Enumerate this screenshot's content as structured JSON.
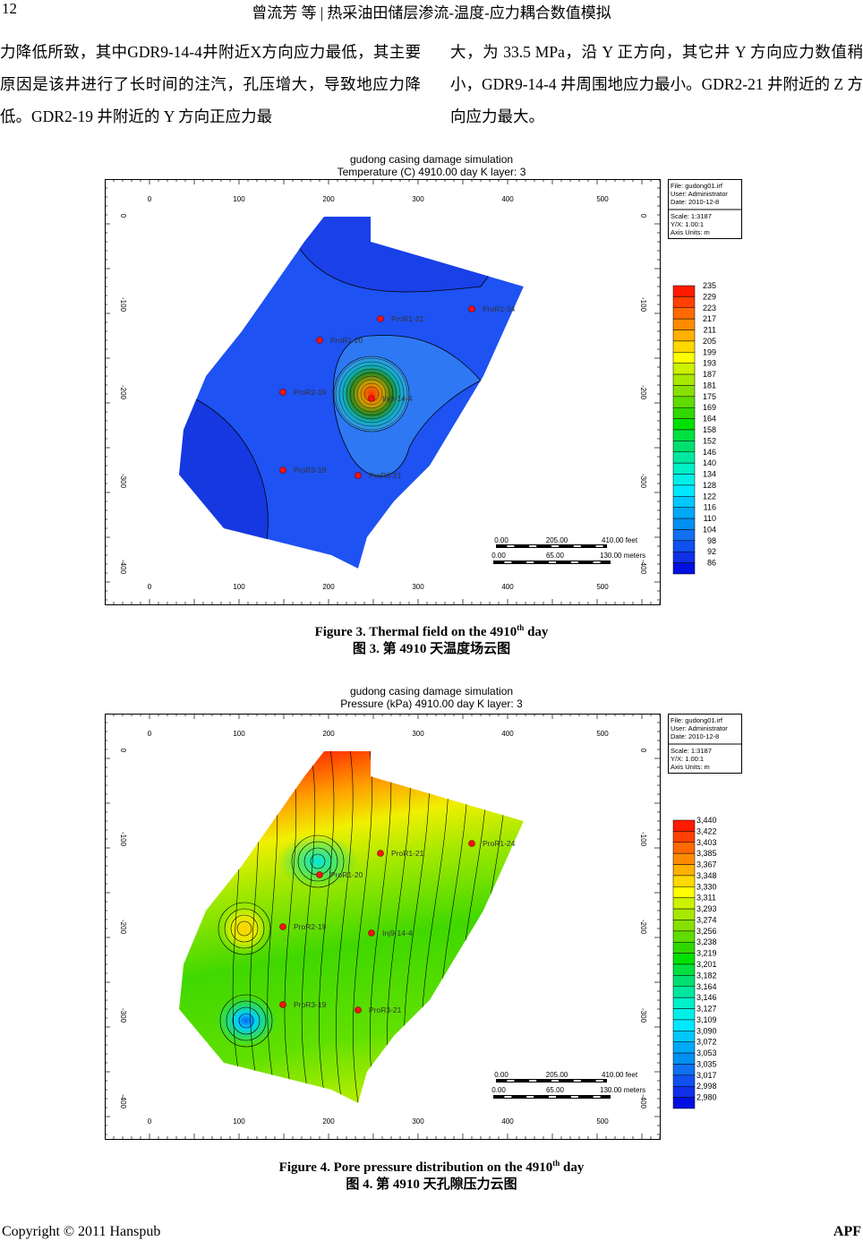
{
  "header": {
    "page_number": "12",
    "title": "曾流芳  等 | 热采油田储层渗流-温度-应力耦合数值模拟"
  },
  "body": {
    "left_column": "力降低所致，其中GDR9-14-4井附近X方向应力最低，其主要原因是该井进行了长时间的注汽，孔压增大，导致地应力降低。GDR2-19 井附近的 Y 方向正应力最",
    "right_column": "大，为 33.5 MPa，沿 Y 正方向，其它井 Y 方向应力数值稍小，GDR9-14-4 井周围地应力最小。GDR2-21 井附近的 Z 方向应力最大。"
  },
  "figures": [
    {
      "title_line1": "gudong casing damage simulation",
      "title_line2": "Temperature (C)  4910.00 day     K layer: 3",
      "caption_en": "Figure 3. Thermal field on the 4910",
      "caption_sup": "th",
      "caption_en_end": " day",
      "caption_zh": "图 3.  第 4910 天温度场云图",
      "colorbar_labels": [
        "235",
        "229",
        "223",
        "217",
        "211",
        "205",
        "199",
        "193",
        "187",
        "181",
        "175",
        "169",
        "164",
        "158",
        "152",
        "146",
        "140",
        "134",
        "128",
        "122",
        "116",
        "110",
        "104",
        "98",
        "92",
        "86"
      ]
    },
    {
      "title_line1": "gudong casing damage simulation",
      "title_line2": "Pressure (kPa)  4910.00 day     K layer: 3",
      "caption_en": "Figure 4. Pore pressure distribution on the 4910",
      "caption_sup": "th",
      "caption_en_end": " day",
      "caption_zh": "图 4.  第 4910 天孔隙压力云图",
      "colorbar_labels": [
        "3,440",
        "3,422",
        "3,403",
        "3,385",
        "3,367",
        "3,348",
        "3,330",
        "3,311",
        "3,293",
        "3,274",
        "3,256",
        "3,238",
        "3,219",
        "3,201",
        "3,182",
        "3,164",
        "3,146",
        "3,127",
        "3,109",
        "3,090",
        "3,072",
        "3,053",
        "3,035",
        "3,017",
        "2,998",
        "2,980"
      ]
    }
  ],
  "common": {
    "info_box": [
      "File: gudong01.irf",
      "User:  Administrator",
      "Date: 2010-12-8"
    ],
    "scale_box": [
      "Scale: 1:3187",
      "Y/X: 1.00:1",
      "Axis Units: m"
    ],
    "x_ticks": [
      "0",
      "100",
      "200",
      "300",
      "400",
      "500"
    ],
    "y_ticks": [
      "0",
      "-100",
      "-200",
      "-300",
      "-400"
    ],
    "scale_feet": [
      "0.00",
      "205.00",
      "410.00 feet"
    ],
    "scale_meters": [
      "0.00",
      "65.00",
      "130.00 meters"
    ],
    "wells": [
      "ProR1-21",
      "ProR1-24",
      "ProR1-20",
      "ProR2-19",
      "Inj9-14-4",
      "ProR3-19",
      "ProR3-21"
    ],
    "colors": [
      "#ff1a00",
      "#ff4000",
      "#ff6a00",
      "#ff8c00",
      "#ffb000",
      "#ffd800",
      "#ffff00",
      "#ccf200",
      "#a8e800",
      "#88e000",
      "#60dc00",
      "#30d800",
      "#00e000",
      "#00e040",
      "#00e070",
      "#00e8a0",
      "#00f0c8",
      "#00f0e8",
      "#00e8ff",
      "#00c8ff",
      "#00a8f8",
      "#0090f0",
      "#1070f0",
      "#1050f0",
      "#1030e8",
      "#0010e0"
    ]
  },
  "footer": {
    "copyright": "Copyright  ©  2011  Hanspub",
    "journal": "APF"
  }
}
